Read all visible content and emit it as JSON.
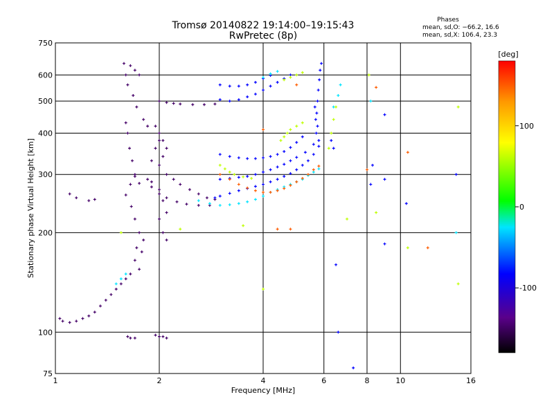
{
  "chart_data": {
    "type": "scatter",
    "title": "Tromsø 20140822 19:14:00–19:15:43",
    "subtitle": "RwPretec (8p)",
    "xlabel": "Frequency [MHz]",
    "ylabel": "Stationary phase Virtual Height [km]",
    "x_scale": "log",
    "y_scale": "log",
    "xlim": [
      1,
      16
    ],
    "ylim": [
      75,
      750
    ],
    "x_ticks": [
      1,
      2,
      4,
      6,
      8,
      10,
      16
    ],
    "y_ticks": [
      75,
      100,
      200,
      300,
      400,
      500,
      600,
      750
    ],
    "grid": true,
    "phase_stats": {
      "heading": "Phases",
      "line_o": "mean, sd,O: −66.2, 16.6",
      "line_x": "mean, sd,X: 106.4, 23.3"
    },
    "colorbar": {
      "label": "[deg]",
      "range": [
        -180,
        180
      ],
      "ticks": [
        100,
        0,
        -100
      ],
      "colormap": "rainbow (black→purple→blue→cyan→green→yellow→red)"
    },
    "series": [
      {
        "phase": -150,
        "points": [
          [
            1.58,
            650
          ],
          [
            1.6,
            600
          ],
          [
            1.62,
            560
          ],
          [
            1.65,
            640
          ],
          [
            1.7,
            620
          ],
          [
            1.75,
            600
          ],
          [
            1.68,
            520
          ],
          [
            1.72,
            480
          ],
          [
            1.8,
            440
          ],
          [
            1.85,
            420
          ],
          [
            1.6,
            430
          ],
          [
            1.62,
            400
          ],
          [
            1.64,
            360
          ],
          [
            1.67,
            330
          ],
          [
            1.7,
            300
          ],
          [
            1.65,
            280
          ],
          [
            1.6,
            260
          ],
          [
            1.66,
            240
          ],
          [
            1.7,
            220
          ],
          [
            1.75,
            200
          ],
          [
            1.8,
            190
          ],
          [
            1.72,
            180
          ],
          [
            1.78,
            175
          ],
          [
            1.7,
            165
          ],
          [
            1.75,
            155
          ],
          [
            1.65,
            150
          ],
          [
            1.6,
            145
          ],
          [
            1.55,
            140
          ],
          [
            1.5,
            135
          ],
          [
            1.45,
            130
          ],
          [
            1.4,
            125
          ],
          [
            1.35,
            120
          ],
          [
            1.3,
            115
          ],
          [
            1.25,
            112
          ],
          [
            1.2,
            110
          ],
          [
            1.15,
            108
          ],
          [
            1.1,
            107
          ],
          [
            1.05,
            108
          ],
          [
            1.03,
            110
          ],
          [
            1.62,
            97
          ],
          [
            1.65,
            96
          ],
          [
            1.7,
            96
          ],
          [
            1.95,
            98
          ],
          [
            2.0,
            97
          ],
          [
            2.05,
            97
          ],
          [
            2.1,
            96
          ],
          [
            2.0,
            500
          ],
          [
            2.1,
            495
          ],
          [
            2.2,
            492
          ],
          [
            2.3,
            490
          ],
          [
            2.5,
            488
          ],
          [
            2.7,
            488
          ],
          [
            2.9,
            490
          ],
          [
            1.95,
            420
          ],
          [
            2.0,
            400
          ],
          [
            2.05,
            380
          ],
          [
            2.1,
            360
          ],
          [
            2.05,
            340
          ],
          [
            2.0,
            320
          ],
          [
            2.1,
            300
          ],
          [
            2.2,
            290
          ],
          [
            2.3,
            280
          ],
          [
            2.45,
            270
          ],
          [
            2.6,
            262
          ],
          [
            2.75,
            255
          ],
          [
            2.9,
            252
          ],
          [
            2.05,
            250
          ],
          [
            2.1,
            230
          ],
          [
            2.0,
            220
          ],
          [
            2.05,
            200
          ],
          [
            2.1,
            190
          ],
          [
            1.85,
            290
          ],
          [
            1.9,
            275
          ],
          [
            2.0,
            262
          ],
          [
            2.1,
            255
          ],
          [
            2.25,
            248
          ],
          [
            2.4,
            244
          ],
          [
            2.6,
            242
          ],
          [
            2.8,
            242
          ],
          [
            1.7,
            296
          ],
          [
            1.75,
            282
          ],
          [
            1.9,
            285
          ],
          [
            2.0,
            270
          ],
          [
            1.3,
            252
          ],
          [
            1.25,
            250
          ],
          [
            1.15,
            255
          ],
          [
            1.1,
            262
          ],
          [
            1.9,
            330
          ],
          [
            1.95,
            360
          ],
          [
            2.0,
            380
          ]
        ]
      },
      {
        "phase": -95,
        "points": [
          [
            3.0,
            560
          ],
          [
            3.2,
            555
          ],
          [
            3.4,
            555
          ],
          [
            3.6,
            560
          ],
          [
            3.8,
            570
          ],
          [
            4.0,
            585
          ],
          [
            4.2,
            598
          ],
          [
            3.0,
            505
          ],
          [
            3.2,
            500
          ],
          [
            3.4,
            505
          ],
          [
            3.6,
            515
          ],
          [
            3.8,
            525
          ],
          [
            4.0,
            540
          ],
          [
            4.2,
            555
          ],
          [
            4.4,
            570
          ],
          [
            4.6,
            585
          ],
          [
            4.8,
            600
          ],
          [
            3.0,
            345
          ],
          [
            3.2,
            340
          ],
          [
            3.4,
            337
          ],
          [
            3.6,
            335
          ],
          [
            3.8,
            335
          ],
          [
            4.0,
            337
          ],
          [
            4.2,
            340
          ],
          [
            4.4,
            345
          ],
          [
            4.6,
            352
          ],
          [
            4.8,
            362
          ],
          [
            5.0,
            375
          ],
          [
            5.2,
            390
          ],
          [
            3.0,
            290
          ],
          [
            3.2,
            292
          ],
          [
            3.4,
            294
          ],
          [
            3.6,
            296
          ],
          [
            3.8,
            300
          ],
          [
            4.0,
            305
          ],
          [
            4.2,
            310
          ],
          [
            4.4,
            316
          ],
          [
            4.6,
            322
          ],
          [
            4.8,
            330
          ],
          [
            5.0,
            338
          ],
          [
            5.3,
            350
          ],
          [
            5.6,
            370
          ],
          [
            2.9,
            255
          ],
          [
            3.0,
            258
          ],
          [
            3.2,
            263
          ],
          [
            3.4,
            268
          ],
          [
            3.6,
            272
          ],
          [
            3.8,
            276
          ],
          [
            4.0,
            280
          ],
          [
            4.2,
            285
          ],
          [
            4.4,
            290
          ],
          [
            4.6,
            296
          ],
          [
            4.8,
            302
          ],
          [
            5.0,
            310
          ],
          [
            5.2,
            320
          ],
          [
            5.4,
            330
          ],
          [
            5.6,
            345
          ],
          [
            5.8,
            365
          ],
          [
            5.8,
            380
          ],
          [
            5.75,
            420
          ],
          [
            5.72,
            460
          ],
          [
            5.75,
            500
          ],
          [
            5.78,
            540
          ],
          [
            5.82,
            580
          ],
          [
            5.85,
            620
          ],
          [
            5.9,
            650
          ],
          [
            5.7,
            400
          ],
          [
            5.68,
            440
          ],
          [
            5.65,
            480
          ],
          [
            6.6,
            100
          ],
          [
            6.5,
            160
          ],
          [
            6.3,
            380
          ],
          [
            6.4,
            360
          ],
          [
            7.3,
            78
          ],
          [
            8.2,
            280
          ],
          [
            9.0,
            290
          ],
          [
            9.0,
            185
          ],
          [
            9.0,
            455
          ],
          [
            10.4,
            245
          ],
          [
            14.5,
            300
          ],
          [
            8.3,
            320
          ]
        ]
      },
      {
        "phase": -40,
        "points": [
          [
            2.6,
            250
          ],
          [
            2.8,
            245
          ],
          [
            3.0,
            242
          ],
          [
            3.2,
            243
          ],
          [
            3.4,
            245
          ],
          [
            3.6,
            248
          ],
          [
            3.8,
            252
          ],
          [
            4.0,
            258
          ],
          [
            4.2,
            265
          ],
          [
            4.4,
            270
          ],
          [
            4.6,
            275
          ],
          [
            4.8,
            280
          ],
          [
            5.0,
            285
          ],
          [
            5.2,
            290
          ],
          [
            5.4,
            298
          ],
          [
            5.6,
            305
          ],
          [
            5.8,
            312
          ],
          [
            4.0,
            590
          ],
          [
            4.2,
            605
          ],
          [
            4.4,
            615
          ],
          [
            1.5,
            140
          ],
          [
            1.55,
            145
          ],
          [
            1.6,
            150
          ],
          [
            6.4,
            480
          ],
          [
            6.6,
            520
          ],
          [
            6.7,
            560
          ],
          [
            8.2,
            500
          ],
          [
            14.5,
            200
          ]
        ]
      },
      {
        "phase": 60,
        "points": [
          [
            3.0,
            320
          ],
          [
            3.1,
            312
          ],
          [
            3.2,
            305
          ],
          [
            3.3,
            300
          ],
          [
            3.5,
            295
          ],
          [
            3.7,
            292
          ],
          [
            4.5,
            380
          ],
          [
            4.6,
            390
          ],
          [
            4.7,
            400
          ],
          [
            4.8,
            410
          ],
          [
            5.0,
            420
          ],
          [
            5.2,
            430
          ],
          [
            4.6,
            580
          ],
          [
            4.8,
            590
          ],
          [
            5.0,
            600
          ],
          [
            5.2,
            610
          ],
          [
            6.2,
            360
          ],
          [
            6.3,
            400
          ],
          [
            6.4,
            440
          ],
          [
            6.5,
            480
          ],
          [
            1.55,
            200
          ],
          [
            2.3,
            205
          ],
          [
            3.5,
            210
          ],
          [
            4.0,
            135
          ],
          [
            7.0,
            220
          ],
          [
            8.1,
            600
          ],
          [
            8.5,
            230
          ],
          [
            14.7,
            480
          ],
          [
            14.7,
            140
          ],
          [
            10.5,
            180
          ]
        ]
      },
      {
        "phase": 150,
        "points": [
          [
            3.0,
            300
          ],
          [
            3.2,
            290
          ],
          [
            3.4,
            280
          ],
          [
            3.6,
            273
          ],
          [
            3.8,
            268
          ],
          [
            4.0,
            265
          ],
          [
            4.2,
            265
          ],
          [
            4.4,
            268
          ],
          [
            4.6,
            272
          ],
          [
            4.8,
            278
          ],
          [
            5.0,
            285
          ],
          [
            5.2,
            292
          ],
          [
            5.4,
            300
          ],
          [
            5.6,
            310
          ],
          [
            5.8,
            318
          ],
          [
            4.4,
            205
          ],
          [
            4.8,
            205
          ],
          [
            5.0,
            560
          ],
          [
            4.0,
            410
          ],
          [
            8.0,
            310
          ],
          [
            8.5,
            550
          ],
          [
            12.0,
            180
          ],
          [
            10.5,
            350
          ]
        ]
      }
    ]
  }
}
